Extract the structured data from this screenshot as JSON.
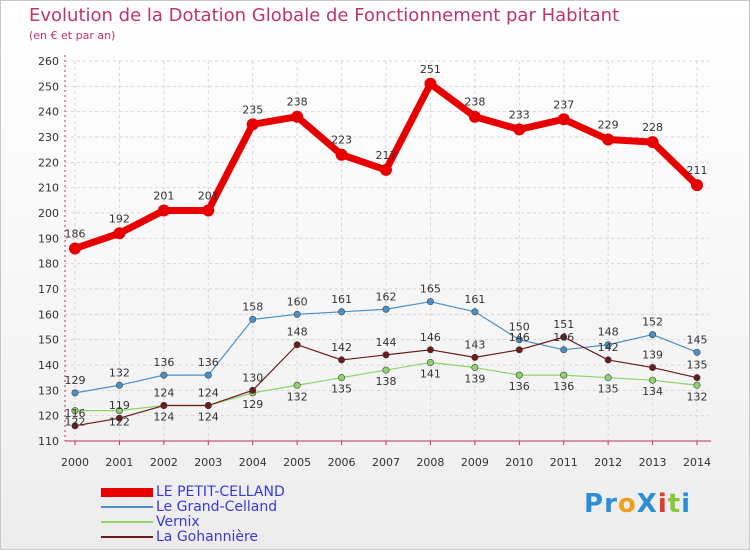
{
  "title": "Evolution de la Dotation Globale de Fonctionnement par Habitant",
  "subtitle": "(en € et par an)",
  "logo": {
    "text": "ProXiti",
    "letters": [
      "P",
      "r",
      "o",
      "X",
      "i",
      "t",
      "i"
    ],
    "colors": [
      "#2a8fd6",
      "#2a8fd6",
      "#f0a020",
      "#2a8fd6",
      "#e03a2a",
      "#8cc63f",
      "#2a8fd6"
    ]
  },
  "chart_data": {
    "type": "line",
    "x": [
      2000,
      2001,
      2002,
      2003,
      2004,
      2005,
      2006,
      2007,
      2008,
      2009,
      2010,
      2011,
      2012,
      2013,
      2014
    ],
    "ylim": [
      110,
      260
    ],
    "yticks": [
      110,
      120,
      130,
      140,
      150,
      160,
      170,
      180,
      190,
      200,
      210,
      220,
      230,
      240,
      250,
      260
    ],
    "grid": true,
    "legend_position": "bottom-left",
    "series": [
      {
        "name": "LE PETIT-CELLAND",
        "color": "#e80000",
        "values": [
          186,
          192,
          201,
          201,
          235,
          238,
          223,
          217,
          251,
          238,
          233,
          237,
          229,
          228,
          211
        ]
      },
      {
        "name": "Le Grand-Celland",
        "color": "#4a90c8",
        "values": [
          129,
          132,
          136,
          136,
          158,
          160,
          161,
          162,
          165,
          161,
          150,
          146,
          148,
          152,
          145
        ]
      },
      {
        "name": "Vernix",
        "color": "#8ed46a",
        "values": [
          122,
          122,
          124,
          124,
          129,
          132,
          135,
          138,
          141,
          139,
          136,
          136,
          135,
          134,
          132
        ]
      },
      {
        "name": "La Gohannière",
        "color": "#6b1a1a",
        "values": [
          116,
          119,
          124,
          124,
          130,
          148,
          142,
          144,
          146,
          143,
          146,
          151,
          142,
          139,
          135
        ]
      }
    ]
  }
}
